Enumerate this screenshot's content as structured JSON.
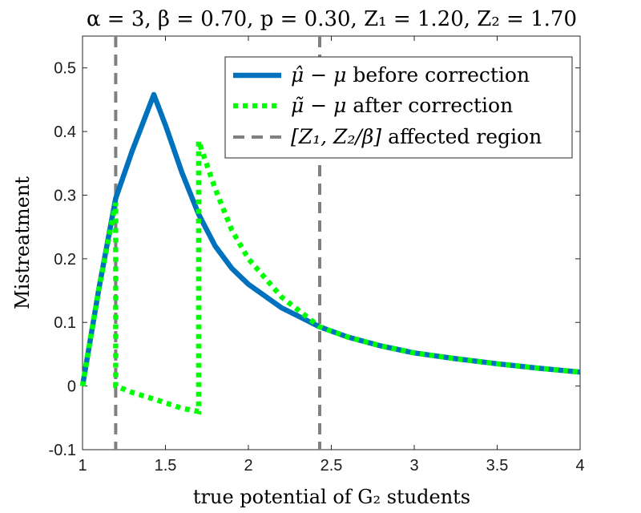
{
  "chart_data": {
    "type": "line",
    "title": "α = 3, β = 0.70, p = 0.30, Z₁ = 1.20, Z₂ = 1.70",
    "xlabel": "true potential of G₂ students",
    "ylabel": "Mistreatment",
    "xlim": [
      1,
      4
    ],
    "ylim": [
      -0.1,
      0.55
    ],
    "xticks": [
      1,
      1.5,
      2,
      2.5,
      3,
      3.5,
      4
    ],
    "xtick_labels": [
      "1",
      "1.5",
      "2",
      "2.5",
      "3",
      "3.5",
      "4"
    ],
    "yticks": [
      -0.1,
      0,
      0.1,
      0.2,
      0.3,
      0.4,
      0.5
    ],
    "ytick_labels": [
      "-0.1",
      "0",
      "0.1",
      "0.2",
      "0.3",
      "0.4",
      "0.5"
    ],
    "grid": false,
    "legend_position": "top-right",
    "series": [
      {
        "name": "μ̂ − μ before correction",
        "style": "solid",
        "color": "#0072BD",
        "x": [
          1.0,
          1.1,
          1.2,
          1.3,
          1.43,
          1.5,
          1.6,
          1.7,
          1.8,
          1.9,
          2.0,
          2.2,
          2.43,
          2.6,
          2.8,
          3.0,
          3.25,
          3.5,
          3.75,
          4.0
        ],
        "y": [
          0.0,
          0.155,
          0.295,
          0.37,
          0.458,
          0.41,
          0.335,
          0.27,
          0.22,
          0.185,
          0.16,
          0.123,
          0.093,
          0.077,
          0.063,
          0.052,
          0.043,
          0.035,
          0.028,
          0.022
        ]
      },
      {
        "name": "μ̃ − μ after correction",
        "style": "dotted",
        "color": "#00FF00",
        "x": [
          1.0,
          1.1,
          1.2,
          1.2,
          1.3,
          1.45,
          1.6,
          1.7,
          1.7,
          1.8,
          1.9,
          2.0,
          2.2,
          2.43,
          2.6,
          2.8,
          3.0,
          3.25,
          3.5,
          3.75,
          4.0
        ],
        "y": [
          0.0,
          0.155,
          0.288,
          0.0,
          -0.01,
          -0.022,
          -0.035,
          -0.04,
          0.385,
          0.31,
          0.245,
          0.2,
          0.14,
          0.093,
          0.077,
          0.063,
          0.052,
          0.043,
          0.035,
          0.028,
          0.022
        ]
      },
      {
        "name": "[Z₁, Z₂/β] affected region",
        "style": "dashed",
        "color": "#808080",
        "vlines": [
          1.2,
          2.43
        ]
      }
    ]
  },
  "legend": {
    "before": {
      "math": "μ̂ − μ",
      "text": "before correction"
    },
    "after": {
      "math": "μ̃ − μ",
      "text": "after correction"
    },
    "region": {
      "math": "[Z₁, Z₂/β]",
      "text": "affected region"
    }
  }
}
